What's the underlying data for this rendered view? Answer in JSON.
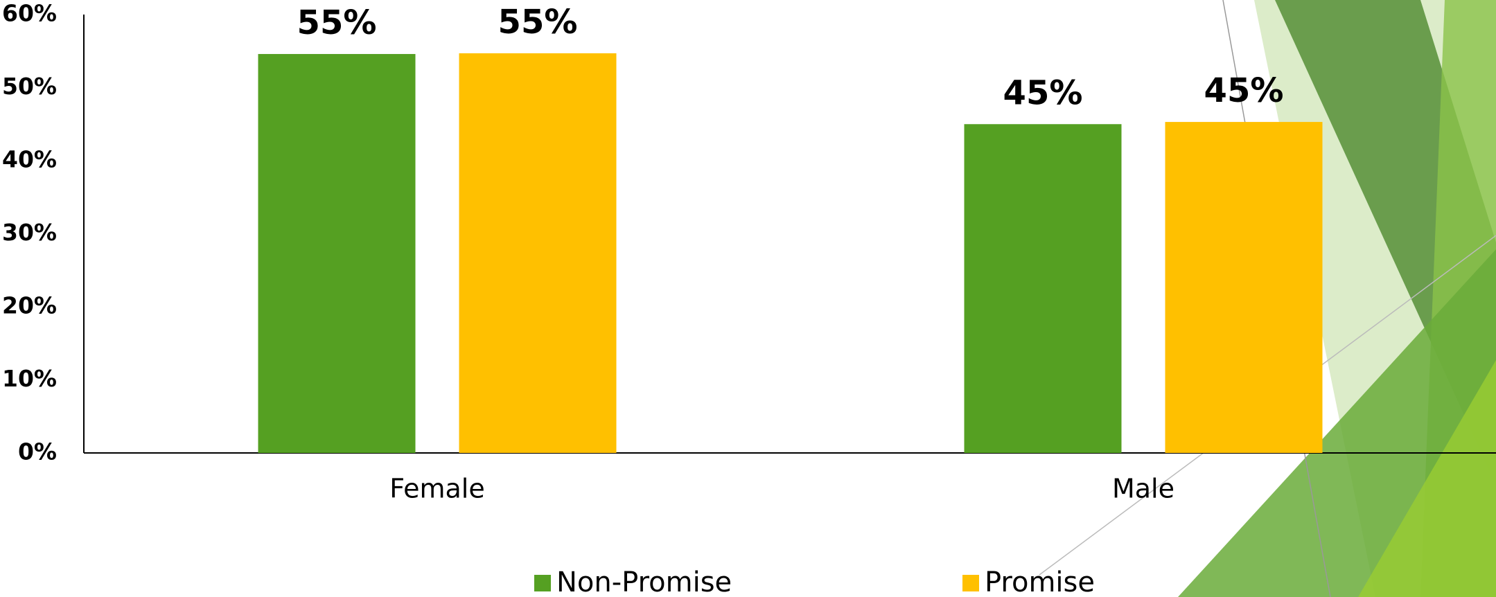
{
  "chart_data": {
    "type": "bar",
    "categories": [
      "Female",
      "Male"
    ],
    "series": [
      {
        "name": "Non-Promise",
        "color": "#55a022",
        "values": [
          54.6,
          45.0
        ],
        "value_labels": [
          "55%",
          "45%"
        ]
      },
      {
        "name": "Promise",
        "color": "#ffc000",
        "values": [
          54.7,
          45.3
        ],
        "value_labels": [
          "55%",
          "45%"
        ]
      }
    ],
    "ylim": [
      0,
      60
    ],
    "yticks": [
      {
        "value": 0,
        "label": "0%"
      },
      {
        "value": 10,
        "label": "10%"
      },
      {
        "value": 20,
        "label": "20%"
      },
      {
        "value": 30,
        "label": "30%"
      },
      {
        "value": 40,
        "label": "40%"
      },
      {
        "value": 50,
        "label": "50%"
      },
      {
        "value": 60,
        "label": "60%"
      }
    ],
    "grid": false
  }
}
